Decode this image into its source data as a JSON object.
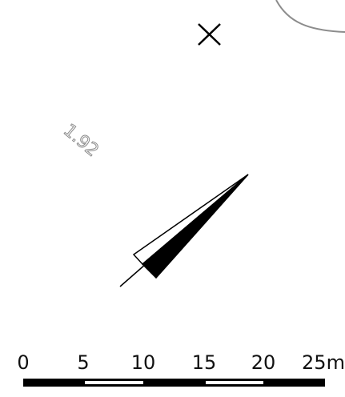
{
  "map": {
    "elevation_label": "1.92",
    "icons": {
      "point_marker": "x-cross-marker-icon",
      "north_arrow": "north-arrow-icon",
      "contour": "contour-line"
    },
    "colors": {
      "background": "#ffffff",
      "ink": "#000000",
      "contour": "#8c8c8c",
      "label": "#8c8c8c"
    }
  },
  "scale_bar": {
    "ticks": [
      "0",
      "5",
      "10",
      "15",
      "20",
      "25m"
    ],
    "segments": [
      "black",
      "white",
      "black",
      "white",
      "black"
    ]
  }
}
